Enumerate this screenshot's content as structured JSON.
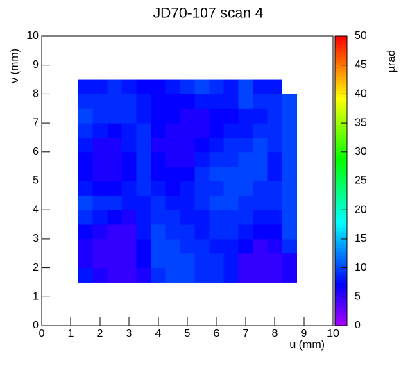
{
  "chart_data": {
    "type": "heatmap",
    "title": "JD70-107 scan 4",
    "x_label": "u (mm)",
    "y_label": "v (mm)",
    "z_label": "µrad",
    "xlim": [
      0,
      10
    ],
    "xticks": [
      0,
      1,
      2,
      3,
      4,
      5,
      6,
      7,
      8,
      9,
      10
    ],
    "ylim": [
      0,
      10
    ],
    "yticks": [
      0,
      1,
      2,
      3,
      4,
      5,
      6,
      7,
      8,
      9,
      10
    ],
    "zlim": [
      0,
      50
    ],
    "zticks": [
      0,
      5,
      10,
      15,
      20,
      25,
      30,
      35,
      40,
      45,
      50
    ],
    "colormap": "rainbow",
    "xbins": [
      1.25,
      1.75,
      2.25,
      2.75,
      3.25,
      3.75,
      4.25,
      4.75,
      5.25,
      5.75,
      6.25,
      6.75,
      7.25,
      7.75,
      8.25,
      8.75
    ],
    "ybins": [
      1.5,
      2.0,
      2.5,
      3.0,
      3.5,
      4.0,
      4.5,
      5.0,
      5.5,
      6.0,
      6.5,
      7.0,
      7.5,
      8.0,
      8.5
    ],
    "values": [
      [
        8,
        6,
        5,
        5,
        6,
        9,
        10,
        10,
        9,
        9,
        8,
        5,
        5,
        5,
        6
      ],
      [
        6,
        5,
        5,
        5,
        7,
        10,
        10,
        10,
        9,
        9,
        8,
        5,
        5,
        5,
        6
      ],
      [
        6,
        5,
        5,
        5,
        7,
        10,
        10,
        9,
        9,
        8,
        8,
        7,
        5,
        6,
        9
      ],
      [
        7,
        6,
        5,
        5,
        8,
        10,
        9,
        9,
        8,
        9,
        9,
        8,
        7,
        7,
        10
      ],
      [
        9,
        8,
        7,
        6,
        8,
        9,
        9,
        8,
        8,
        9,
        9,
        9,
        8,
        8,
        10
      ],
      [
        10,
        9,
        9,
        8,
        8,
        9,
        8,
        8,
        9,
        10,
        10,
        9,
        9,
        9,
        10
      ],
      [
        8,
        7,
        7,
        8,
        9,
        8,
        7,
        8,
        9,
        9,
        10,
        10,
        9,
        9,
        10
      ],
      [
        7,
        6,
        6,
        7,
        9,
        7,
        7,
        7,
        9,
        10,
        10,
        10,
        10,
        8,
        10
      ],
      [
        7,
        6,
        6,
        7,
        9,
        7,
        6,
        6,
        8,
        9,
        9,
        10,
        10,
        8,
        10
      ],
      [
        8,
        6,
        6,
        8,
        9,
        6,
        6,
        6,
        7,
        8,
        9,
        9,
        10,
        9,
        10
      ],
      [
        9,
        8,
        7,
        8,
        9,
        7,
        6,
        6,
        6,
        7,
        8,
        8,
        9,
        9,
        10
      ],
      [
        10,
        9,
        9,
        9,
        8,
        7,
        7,
        6,
        6,
        7,
        7,
        8,
        8,
        9,
        10
      ],
      [
        9,
        9,
        9,
        9,
        8,
        7,
        7,
        7,
        8,
        8,
        8,
        10,
        9,
        9,
        10
      ],
      [
        8,
        8,
        9,
        8,
        7,
        7,
        8,
        9,
        10,
        9,
        8,
        10,
        8,
        8,
        null
      ]
    ]
  }
}
